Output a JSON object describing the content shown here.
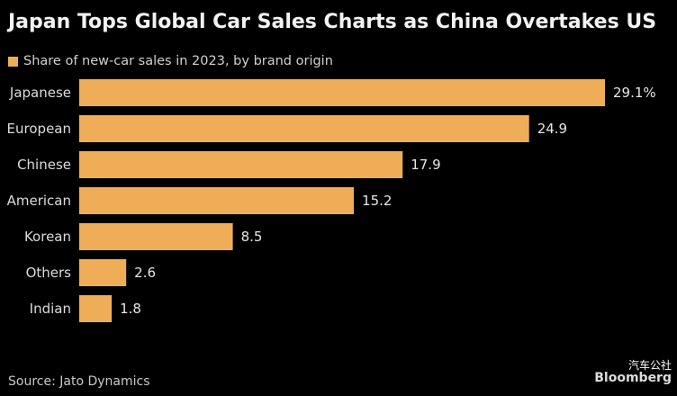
{
  "header": {
    "title": "Japan Tops Global Car Sales Charts as China Overtakes US"
  },
  "footer": {
    "source": "Source: Jato Dynamics",
    "brand": "Bloomberg",
    "watermark": "汽车公社"
  },
  "colors": {
    "bar": "#f0ad57",
    "background": "#000000"
  },
  "chart_data": {
    "type": "bar",
    "orientation": "horizontal",
    "title": "Japan Tops Global Car Sales Charts as China Overtakes US",
    "legend": "Share of new-car sales in 2023, by brand origin",
    "legend_position": "top-left",
    "categories": [
      "Japanese",
      "European",
      "Chinese",
      "American",
      "Korean",
      "Others",
      "Indian"
    ],
    "values": [
      29.1,
      24.9,
      17.9,
      15.2,
      8.5,
      2.6,
      1.8
    ],
    "value_labels": [
      "29.1%",
      "24.9",
      "17.9",
      "15.2",
      "8.5",
      "2.6",
      "1.8"
    ],
    "xlim": [
      0,
      29.1
    ],
    "grid": false
  }
}
